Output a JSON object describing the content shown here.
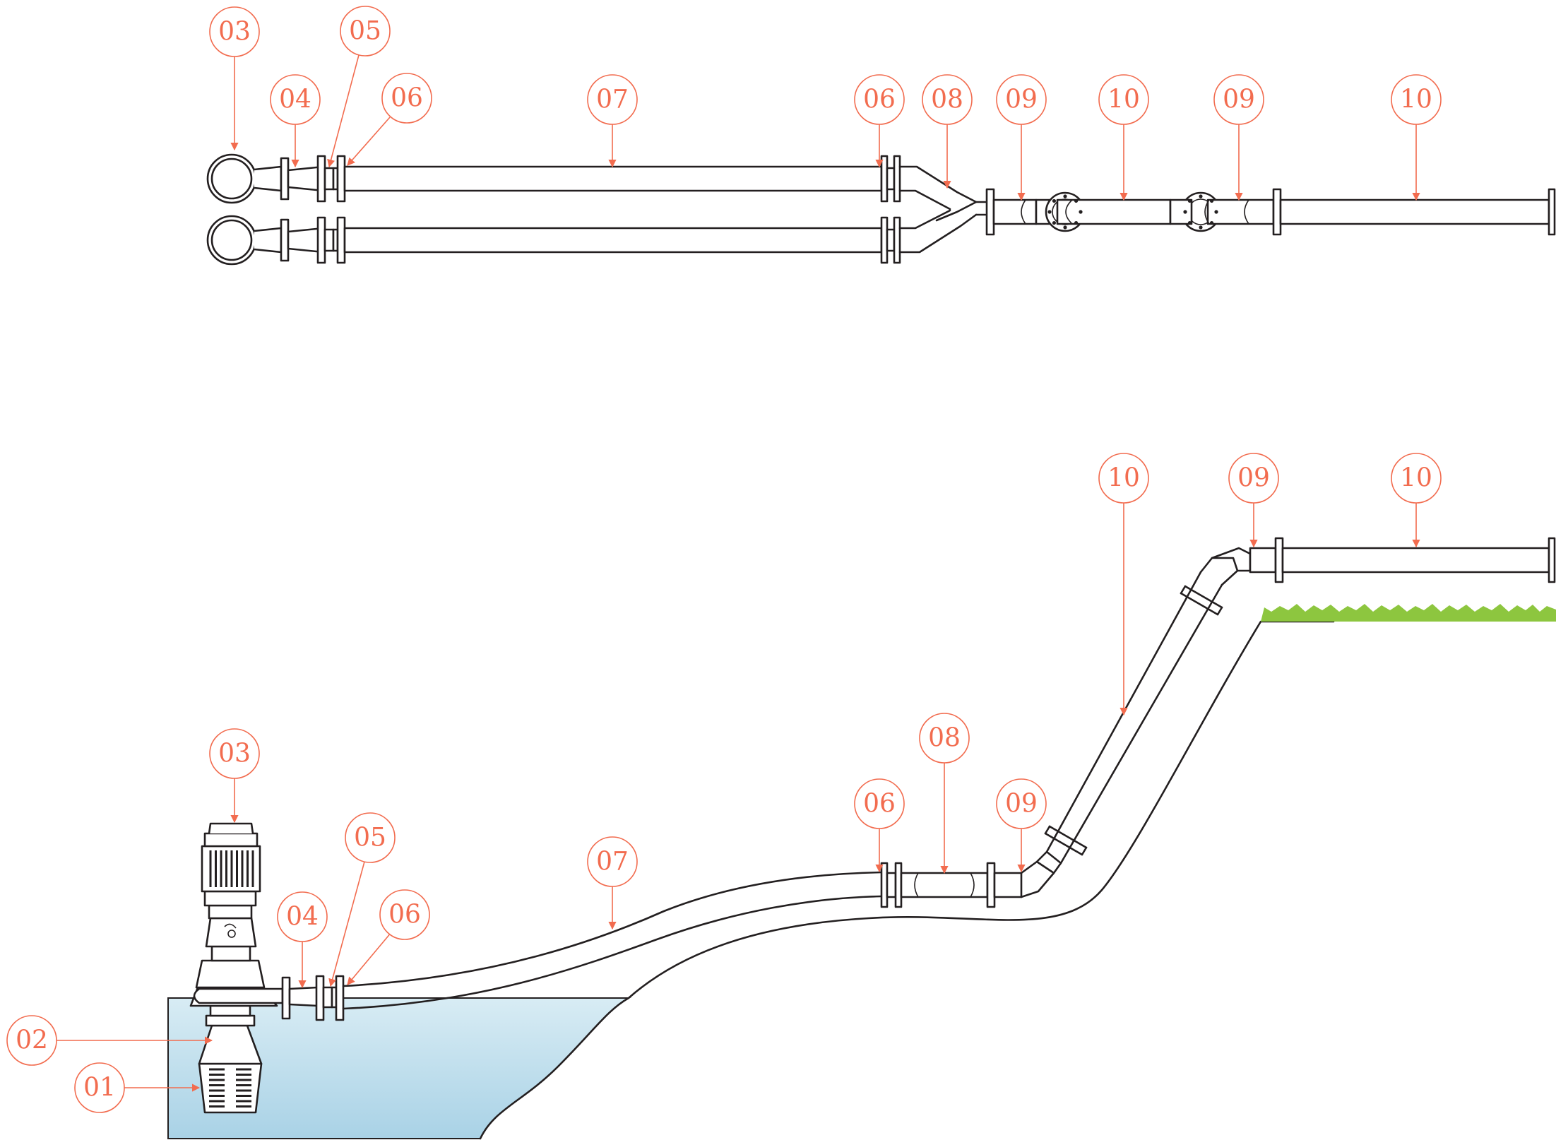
{
  "diagram": {
    "colors": {
      "callout": "#f26c4f",
      "line": "#231f20",
      "water_top": "#d8ecf4",
      "water_bottom": "#a9d2e6",
      "grass": "#8dc63f"
    },
    "plan_view": {
      "labels": {
        "pump": "03",
        "reducer": "04",
        "check_valve": "05",
        "gate_valve_left": "06",
        "pipe_main": "07",
        "gate_valve_right": "06",
        "y_junction": "08",
        "elbow_a": "09",
        "pipe_a": "10",
        "elbow_b": "09",
        "pipe_b": "10"
      }
    },
    "side_view": {
      "labels": {
        "strainer": "01",
        "column": "02",
        "motor": "03",
        "reducer": "04",
        "check_valve": "05",
        "gate_valve_left": "06",
        "pipe_main": "07",
        "gate_valve_right": "06",
        "expansion_joint": "08",
        "elbow_low": "09",
        "pipe_riser": "10",
        "elbow_high": "09",
        "pipe_top": "10"
      }
    }
  }
}
